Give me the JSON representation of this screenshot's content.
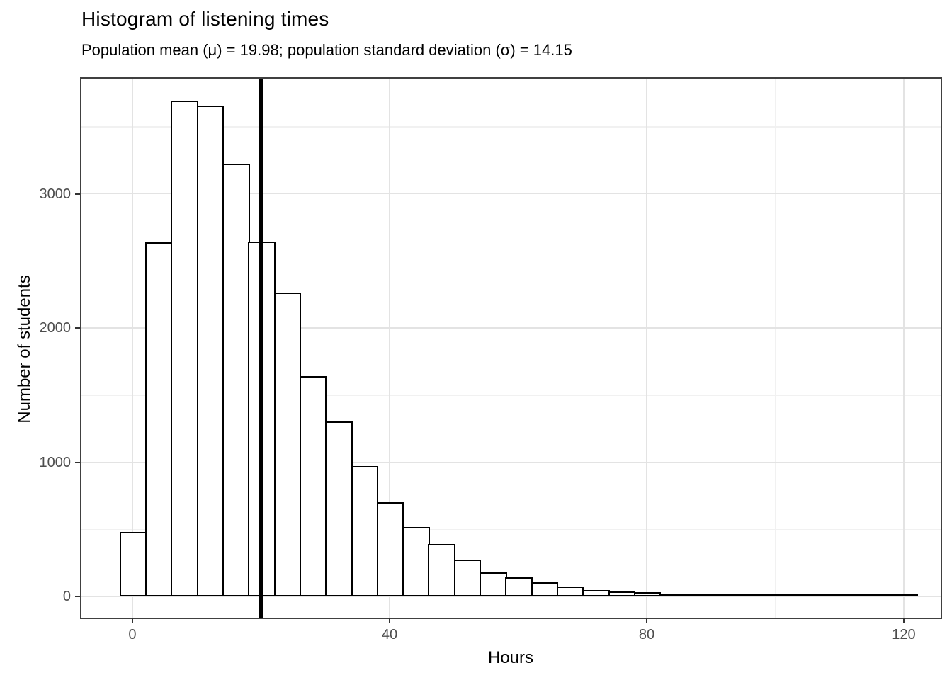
{
  "chart_data": {
    "type": "bar",
    "variant": "histogram",
    "title": "Histogram of listening times",
    "subtitle": "Population mean (μ) = 19.98; population standard deviation (σ) = 14.15",
    "xlabel": "Hours",
    "ylabel": "Number of students",
    "bin_width": 4,
    "bin_centers": [
      0,
      4,
      8,
      12,
      16,
      20,
      24,
      28,
      32,
      36,
      40,
      44,
      48,
      52,
      56,
      60,
      64,
      68,
      72,
      76,
      80,
      84,
      88,
      92,
      96,
      100,
      104,
      108,
      112,
      116,
      120
    ],
    "values": [
      480,
      2640,
      3695,
      3660,
      3225,
      2645,
      2265,
      1640,
      1305,
      970,
      700,
      520,
      390,
      275,
      180,
      143,
      105,
      72,
      50,
      38,
      30,
      20,
      15,
      18,
      12,
      10,
      7,
      5,
      7,
      4,
      3
    ],
    "population_mean": 19.98,
    "population_sd": 14.15,
    "mean_vline_x": 19.98,
    "x_ticks": [
      0,
      40,
      80,
      120
    ],
    "x_minor_gridlines": [
      20,
      60,
      100
    ],
    "y_ticks": [
      0,
      1000,
      2000,
      3000
    ],
    "y_minor_gridlines": [
      500,
      1500,
      2500,
      3500
    ],
    "xlim": [
      -7.93,
      125.73
    ],
    "ylim": [
      -158,
      3858
    ],
    "grid": true,
    "legend_position": "none",
    "colors": {
      "background": "#ffffff",
      "bar_fill": "#ffffff",
      "bar_stroke": "#000000",
      "mean_line": "#000000",
      "grid_major": "#e3e3e3",
      "grid_minor": "#f1f1f1",
      "panel_border": "#404040",
      "tick_label": "#4d4d4d",
      "text": "#000000"
    }
  }
}
